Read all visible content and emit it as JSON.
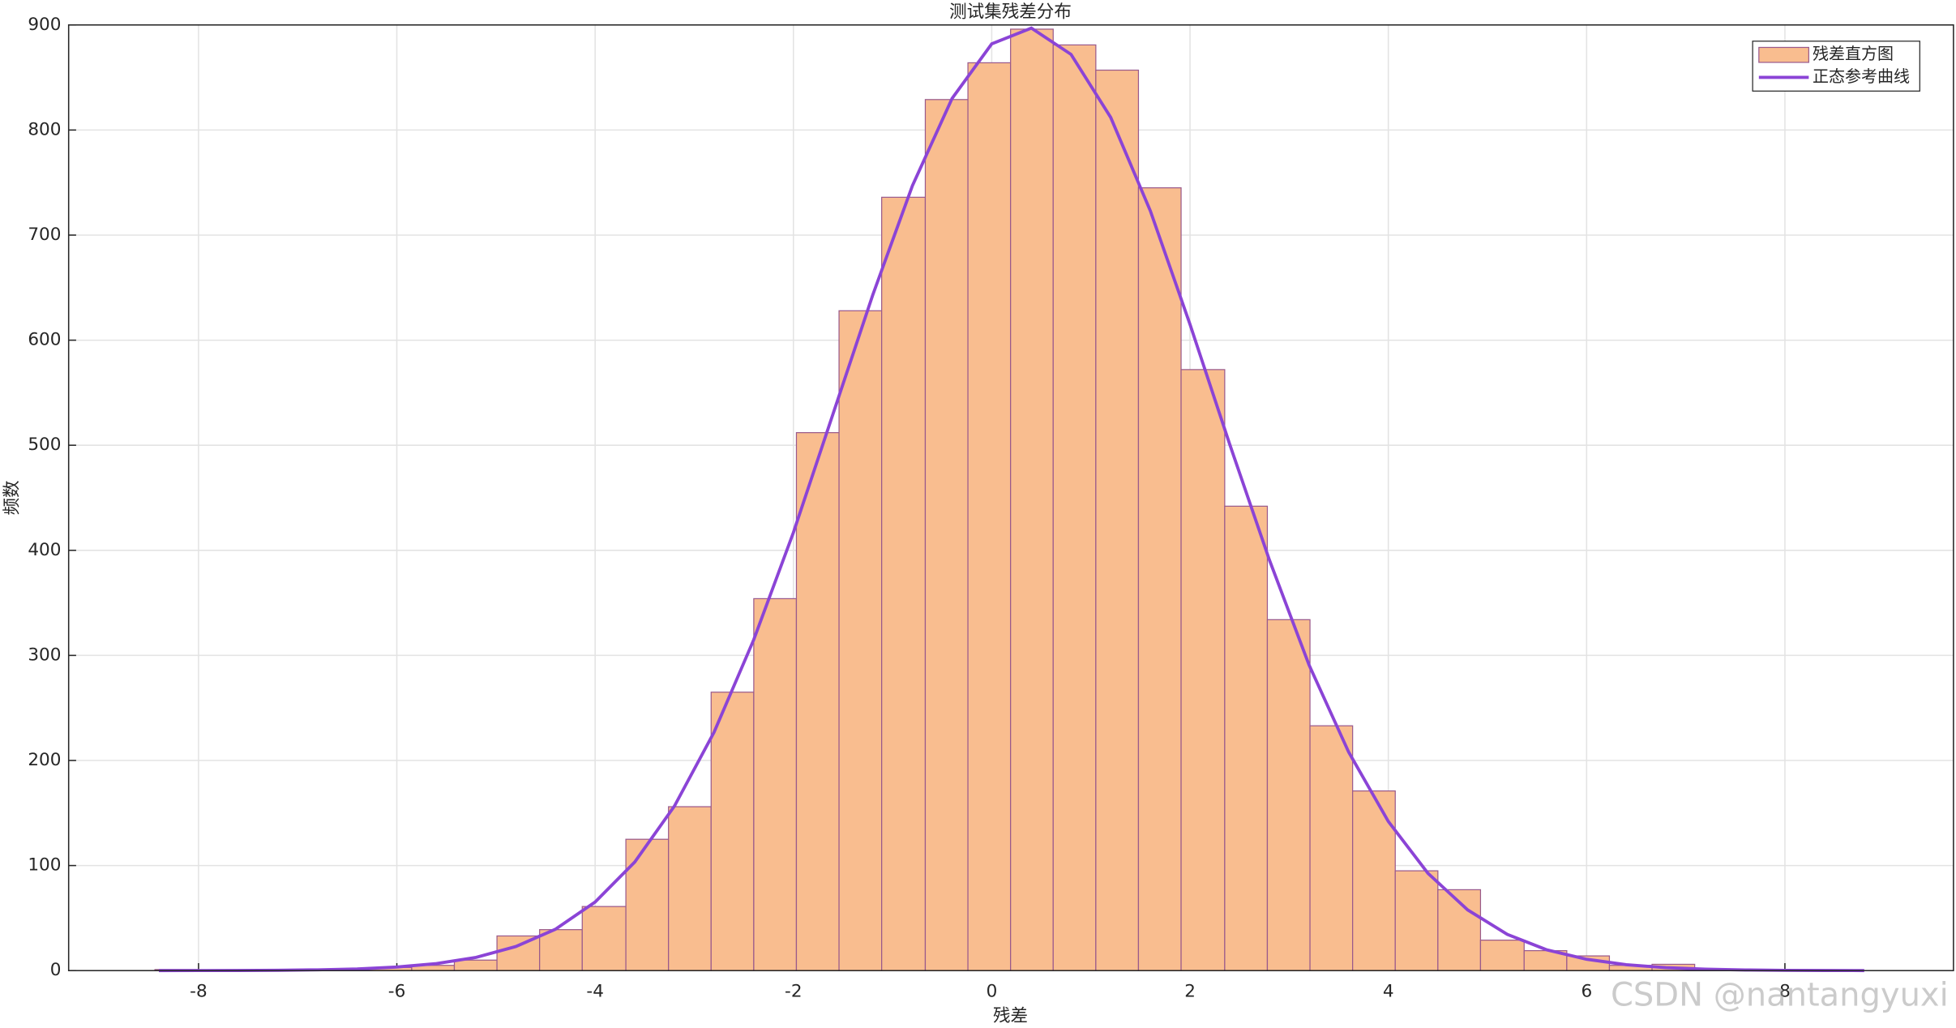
{
  "chart_data": {
    "type": "histogram",
    "title": "测试集残差分布",
    "xlabel": "残差",
    "ylabel": "频数",
    "name": "残差直方图",
    "color": "#f9bd8f",
    "edgecolor": "#9a5a8c",
    "bins": [
      -8.44,
      -8.01,
      -7.58,
      -7.15,
      -6.71,
      -6.28,
      -5.85,
      -5.42,
      -4.99,
      -4.56,
      -4.13,
      -3.69,
      -3.26,
      -2.83,
      -2.4,
      -1.97,
      -1.54,
      -1.11,
      -0.67,
      -0.24,
      0.19,
      0.62,
      1.05,
      1.48,
      1.91,
      2.35,
      2.78,
      3.21,
      3.64,
      4.07,
      4.5,
      4.93,
      5.37,
      5.8,
      6.23,
      6.66,
      7.09
    ],
    "values": [
      1,
      0,
      0,
      1,
      1,
      3,
      5,
      10,
      33,
      39,
      61,
      125,
      156,
      265,
      354,
      512,
      628,
      736,
      829,
      864,
      896,
      881,
      857,
      745,
      572,
      442,
      334,
      233,
      171,
      95,
      77,
      29,
      19,
      14,
      5,
      6
    ],
    "curve": {
      "name": "正态参考曲线",
      "color": "#8b44d6",
      "x": [
        -8.4,
        -8.0,
        -7.6,
        -7.2,
        -6.8,
        -6.4,
        -6.0,
        -5.6,
        -5.2,
        -4.8,
        -4.4,
        -4.0,
        -3.6,
        -3.2,
        -2.8,
        -2.4,
        -2.0,
        -1.6,
        -1.2,
        -0.8,
        -0.4,
        0,
        0.4,
        0.8,
        1.2,
        1.6,
        2.0,
        2.4,
        2.8,
        3.2,
        3.6,
        4.0,
        4.4,
        4.8,
        5.2,
        5.6,
        6.0,
        6.4,
        6.8,
        7.2,
        7.6,
        8.0,
        8.4,
        8.8
      ],
      "y": [
        0.02,
        0.06,
        0.14,
        0.34,
        0.75,
        1.6,
        3.4,
        6.7,
        12.6,
        22.9,
        39.4,
        65.3,
        103.4,
        156.6,
        227,
        315,
        417,
        530,
        643,
        747,
        830,
        882,
        897,
        872,
        812,
        723,
        615,
        501,
        391,
        291,
        208,
        142,
        92.6,
        57.8,
        34.5,
        19.7,
        10.8,
        5.6,
        2.8,
        1.35,
        0.62,
        0.27,
        0.11,
        0.05
      ]
    },
    "xlim": [
      -9.31,
      9.7
    ],
    "ylim": [
      0,
      900
    ],
    "xticks": [
      -8,
      -6,
      -4,
      -2,
      0,
      2,
      4,
      6,
      8
    ],
    "yticks": [
      0,
      100,
      200,
      300,
      400,
      500,
      600,
      700,
      800,
      900
    ],
    "grid": true,
    "legend": "northeast",
    "watermark": "CSDN @nantangyuxi"
  }
}
